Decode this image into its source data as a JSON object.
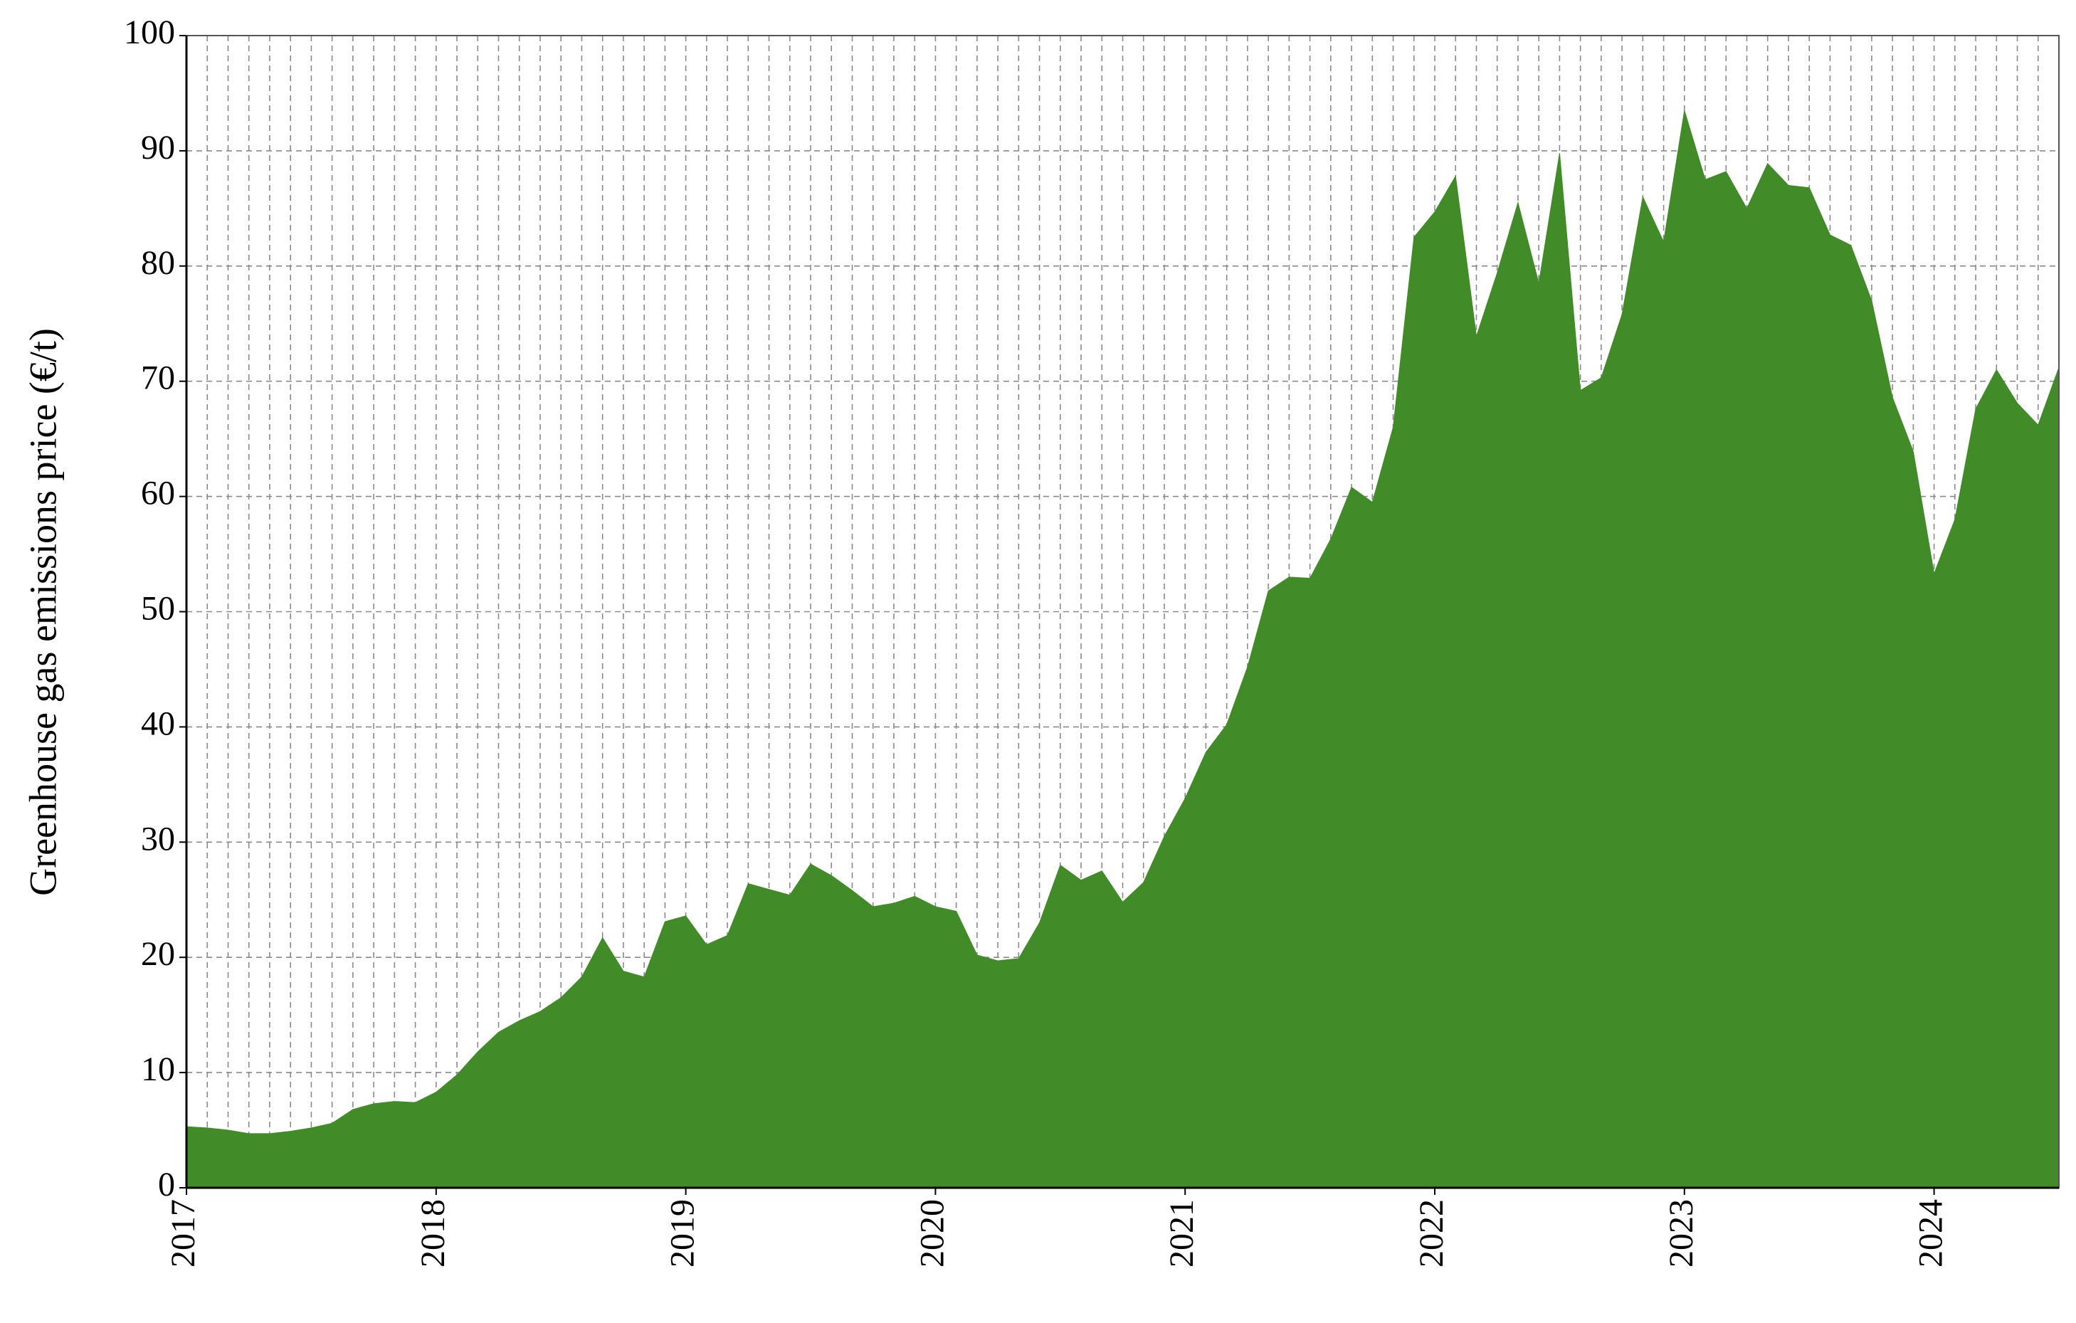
{
  "chart_data": {
    "type": "area",
    "y_label": "Greenhouse gas emissions price (€/t)",
    "x": [
      2017,
      2017.0833,
      2017.1667,
      2017.25,
      2017.3333,
      2017.4167,
      2017.5,
      2017.5833,
      2017.6667,
      2017.75,
      2017.8333,
      2017.9167,
      2018,
      2018.0833,
      2018.1667,
      2018.25,
      2018.3333,
      2018.4167,
      2018.5,
      2018.5833,
      2018.6667,
      2018.75,
      2018.8333,
      2018.9167,
      2019,
      2019.0833,
      2019.1667,
      2019.25,
      2019.3333,
      2019.4167,
      2019.5,
      2019.5833,
      2019.6667,
      2019.75,
      2019.8333,
      2019.9167,
      2020,
      2020.0833,
      2020.1667,
      2020.25,
      2020.3333,
      2020.4167,
      2020.5,
      2020.5833,
      2020.6667,
      2020.75,
      2020.8333,
      2020.9167,
      2021,
      2021.0833,
      2021.1667,
      2021.25,
      2021.3333,
      2021.4167,
      2021.5,
      2021.5833,
      2021.6667,
      2021.75,
      2021.8333,
      2021.9167,
      2022,
      2022.0833,
      2022.1667,
      2022.25,
      2022.3333,
      2022.4167,
      2022.5,
      2022.5833,
      2022.6667,
      2022.75,
      2022.8333,
      2022.9167,
      2023,
      2023.0833,
      2023.1667,
      2023.25,
      2023.3333,
      2023.4167,
      2023.5,
      2023.5833,
      2023.6667,
      2023.75,
      2023.8333,
      2023.9167,
      2024,
      2024.0833,
      2024.1667,
      2024.25,
      2024.3333,
      2024.4167,
      2024.5
    ],
    "series": [
      {
        "color": "#418b28",
        "values": [
          5.3,
          5.2,
          5.0,
          4.7,
          4.7,
          4.9,
          5.2,
          5.6,
          6.8,
          7.3,
          7.5,
          7.4,
          8.3,
          9.8,
          11.8,
          13.5,
          14.5,
          15.3,
          16.5,
          18.3,
          21.7,
          18.8,
          18.3,
          23.1,
          23.6,
          21.1,
          21.9,
          26.4,
          25.9,
          25.4,
          28.1,
          27.1,
          25.8,
          24.4,
          24.7,
          25.3,
          24.4,
          24.0,
          20.2,
          19.7,
          19.9,
          23.0,
          28.0,
          26.7,
          27.5,
          24.8,
          26.5,
          30.5,
          33.8,
          37.8,
          40.2,
          45.2,
          51.8,
          53.0,
          52.9,
          56.3,
          60.8,
          59.5,
          66.0,
          82.5,
          84.7,
          87.8,
          73.9,
          79.4,
          85.5,
          78.5,
          89.8,
          69.2,
          70.3,
          75.8,
          86.0,
          82.1,
          93.5,
          87.5,
          88.2,
          85.0,
          88.9,
          87.0,
          86.8,
          82.7,
          81.8,
          77.0,
          68.6,
          63.9,
          53.3,
          58.0,
          67.6,
          71.0,
          68.1,
          66.2,
          71.2
        ]
      }
    ],
    "xlim": [
      2017,
      2024.5
    ],
    "xticks": [
      2017,
      2018,
      2019,
      2020,
      2021,
      2022,
      2023,
      2024
    ],
    "ylim": [
      0,
      100
    ],
    "yticks": [
      0,
      10,
      20,
      30,
      40,
      50,
      60,
      70,
      80,
      90,
      100
    ],
    "grid": true
  }
}
